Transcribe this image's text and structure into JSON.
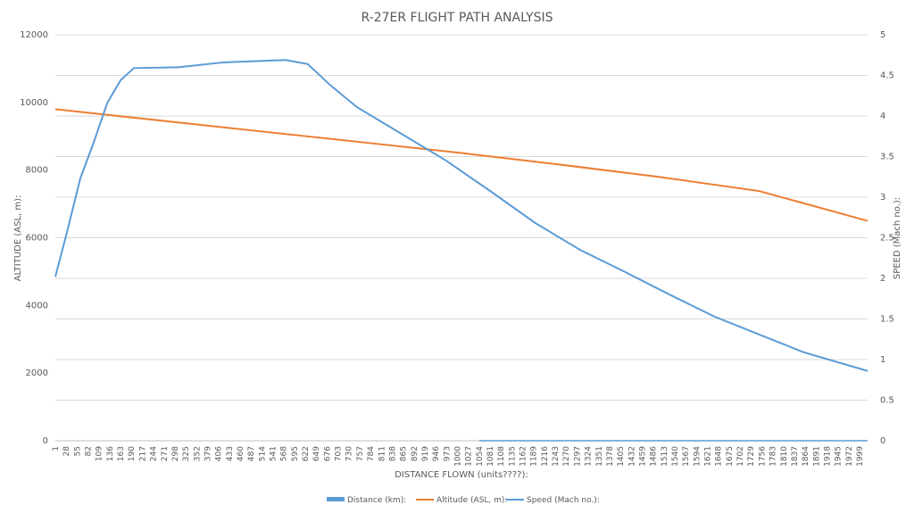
{
  "chart_data": {
    "type": "line",
    "title": "R-27ER FLIGHT PATH ANALYSIS",
    "xlabel": "DISTANCE FLOWN (units????):",
    "ylabel": "ALTITUDE (ASL, m):",
    "y2label": "SPEED (Mach no.):",
    "ylim": [
      0,
      12000
    ],
    "y2lim": [
      0,
      5
    ],
    "yticks": [
      "0",
      "2000",
      "4000",
      "6000",
      "8000",
      "10000",
      "12000"
    ],
    "y2ticks": [
      "0",
      "0.5",
      "1",
      "1.5",
      "2",
      "2.5",
      "3",
      "3.5",
      "4",
      "4.5",
      "5"
    ],
    "xlim": [
      1,
      2019
    ],
    "xticks": [
      "1",
      "28",
      "55",
      "82",
      "109",
      "136",
      "163",
      "190",
      "217",
      "244",
      "271",
      "298",
      "325",
      "352",
      "379",
      "406",
      "433",
      "460",
      "487",
      "514",
      "541",
      "568",
      "595",
      "622",
      "649",
      "676",
      "703",
      "730",
      "757",
      "784",
      "811",
      "838",
      "865",
      "892",
      "919",
      "946",
      "973",
      "1000",
      "1027",
      "1054",
      "1081",
      "1108",
      "1135",
      "1162",
      "1189",
      "1216",
      "1243",
      "1270",
      "1297",
      "1324",
      "1351",
      "1378",
      "1405",
      "1432",
      "1459",
      "1486",
      "1513",
      "1540",
      "1567",
      "1594",
      "1621",
      "1648",
      "1675",
      "1702",
      "1729",
      "1756",
      "1783",
      "1810",
      "1837",
      "1864",
      "1891",
      "1918",
      "1945",
      "1972",
      "1999"
    ],
    "grid": true,
    "legend": "bottom",
    "series": [
      {
        "name": "Distance (km):",
        "kind": "bar",
        "axis": "left",
        "color": "#5b9bd5",
        "x": [
          1054,
          2019
        ],
        "values": [
          0,
          0
        ]
      },
      {
        "name": "Altitude (ASL, m):",
        "kind": "line",
        "axis": "left",
        "color": "#ed7d31",
        "x": [
          1,
          250,
          500,
          750,
          1000,
          1250,
          1500,
          1750,
          2019
        ],
        "values": [
          9800,
          9480,
          9160,
          8840,
          8520,
          8170,
          7800,
          7380,
          6500
        ]
      },
      {
        "name": "Speed (Mach no.):",
        "kind": "line",
        "axis": "right",
        "color": "#5b9bd5",
        "x": [
          1,
          30,
          63,
          96,
          130,
          163,
          196,
          307,
          418,
          573,
          628,
          684,
          750,
          861,
          972,
          1083,
          1194,
          1305,
          1416,
          1527,
          1638,
          1749,
          1860,
          2019
        ],
        "values": [
          2.02,
          2.57,
          3.23,
          3.67,
          4.16,
          4.44,
          4.59,
          4.6,
          4.66,
          4.69,
          4.64,
          4.38,
          4.11,
          3.78,
          3.45,
          3.07,
          2.68,
          2.35,
          2.08,
          1.8,
          1.53,
          1.31,
          1.09,
          0.86
        ]
      }
    ]
  }
}
